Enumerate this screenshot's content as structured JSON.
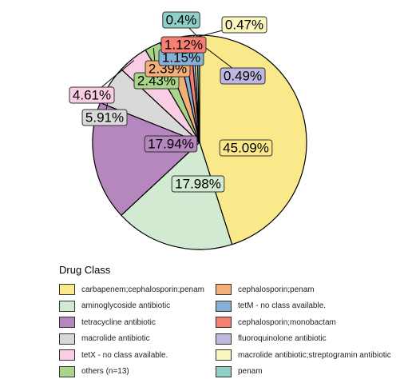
{
  "chart_data": {
    "type": "pie",
    "legend_title": "Drug Class",
    "legend_position": "bottom",
    "slices": [
      {
        "name": "carbapenem;cephalosporin;penam",
        "value": 45.09,
        "label": "45.09%",
        "color": "#FAE98A"
      },
      {
        "name": "aminoglycoside antibiotic",
        "value": 17.98,
        "label": "17.98%",
        "color": "#D2EAD1"
      },
      {
        "name": "tetracycline antibiotic",
        "value": 17.94,
        "label": "17.94%",
        "color": "#B686BE"
      },
      {
        "name": "macrolide antibiotic",
        "value": 5.91,
        "label": "5.91%",
        "color": "#D9D9D9"
      },
      {
        "name": "tetX - no class available.",
        "value": 4.61,
        "label": "4.61%",
        "color": "#F9CDE3"
      },
      {
        "name": "others (n=13)",
        "value": 2.43,
        "label": "2.43%",
        "color": "#A8D58A"
      },
      {
        "name": "cephalosporin;penam",
        "value": 2.39,
        "label": "2.39%",
        "color": "#F2AF78"
      },
      {
        "name": "tetM - no class available.",
        "value": 1.15,
        "label": "1.15%",
        "color": "#86B0D6"
      },
      {
        "name": "cephalosporin;monobactam",
        "value": 1.12,
        "label": "1.12%",
        "color": "#F47F72"
      },
      {
        "name": "fluoroquinolone antibiotic",
        "value": 0.49,
        "label": "0.49%",
        "color": "#BCB8E0"
      },
      {
        "name": "macrolide antibiotic;streptogramin antibiotic",
        "value": 0.47,
        "label": "0.47%",
        "color": "#FBF6BD"
      },
      {
        "name": "penam",
        "value": 0.4,
        "label": "0.4%",
        "color": "#8ECFC8"
      }
    ]
  }
}
